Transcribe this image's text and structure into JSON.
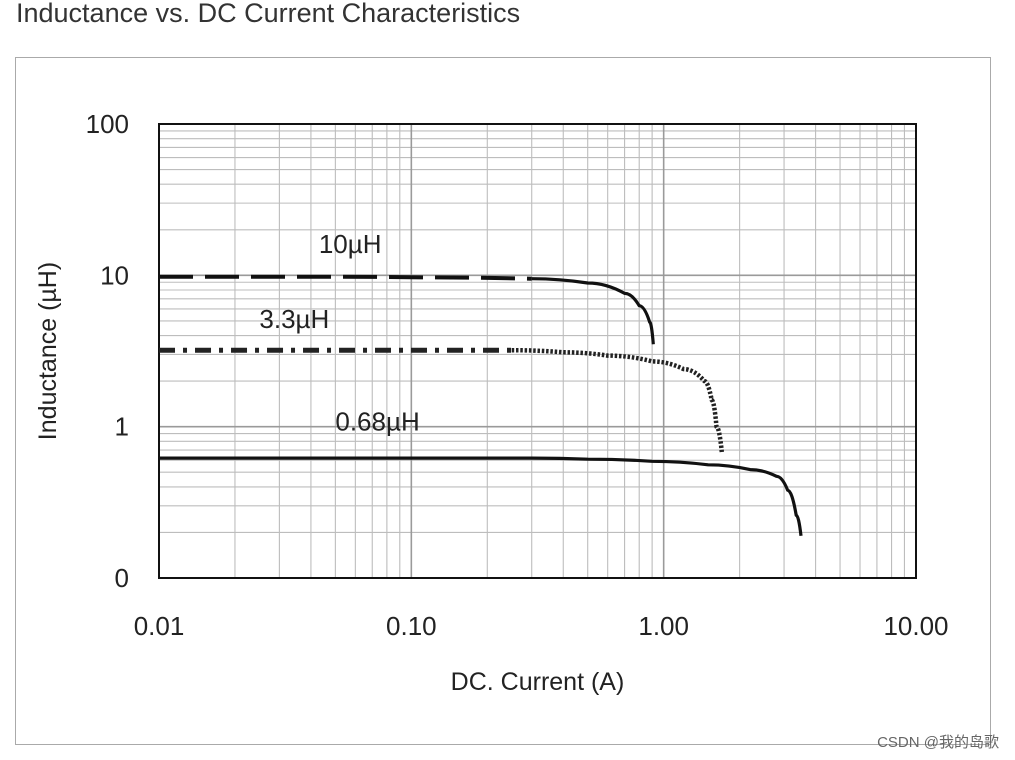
{
  "title": "Inductance vs. DC Current Characteristics",
  "watermark": "CSDN @我的岛歌",
  "chart_data": {
    "type": "line",
    "xlabel": "DC. Current (A)",
    "ylabel": "Inductance (µH)",
    "xscale": "log",
    "yscale": "log",
    "xlim": [
      0.01,
      10
    ],
    "ylim": [
      0.1,
      100
    ],
    "xticks": [
      0.01,
      0.1,
      1,
      10
    ],
    "xtick_labels": [
      "0.01",
      "0.10",
      "1.00",
      "10.00"
    ],
    "yticks": [
      0.1,
      1,
      10,
      100
    ],
    "ytick_labels": [
      "0",
      "1",
      "10",
      "100"
    ],
    "grid": true,
    "legend": "none",
    "series": [
      {
        "name": "10µH",
        "style": "long-dash then solid",
        "color": "#111111",
        "x": [
          0.01,
          0.05,
          0.1,
          0.3,
          0.5,
          0.7,
          0.8,
          0.88,
          0.91
        ],
        "y": [
          9.8,
          9.8,
          9.7,
          9.5,
          8.9,
          7.6,
          6.3,
          4.9,
          3.5
        ]
      },
      {
        "name": "3.3µH",
        "style": "dotted-dash then dotted",
        "color": "#222222",
        "x": [
          0.01,
          0.1,
          0.25,
          0.4,
          0.6,
          0.9,
          1.2,
          1.45,
          1.55,
          1.62,
          1.7
        ],
        "y": [
          3.2,
          3.2,
          3.2,
          3.1,
          2.95,
          2.7,
          2.4,
          2.0,
          1.5,
          1.0,
          0.68
        ]
      },
      {
        "name": "0.68µH",
        "style": "solid",
        "color": "#111111",
        "x": [
          0.01,
          0.1,
          0.3,
          0.5,
          0.9,
          1.5,
          2.2,
          2.8,
          3.1,
          3.35,
          3.5
        ],
        "y": [
          0.62,
          0.62,
          0.62,
          0.61,
          0.59,
          0.56,
          0.52,
          0.47,
          0.38,
          0.26,
          0.19
        ]
      }
    ],
    "series_labels": [
      {
        "text": "10µH",
        "x": 0.043,
        "y": 14
      },
      {
        "text": "3.3µH",
        "x": 0.025,
        "y": 4.5
      },
      {
        "text": "0.68µH",
        "x": 0.05,
        "y": 0.94
      }
    ]
  }
}
